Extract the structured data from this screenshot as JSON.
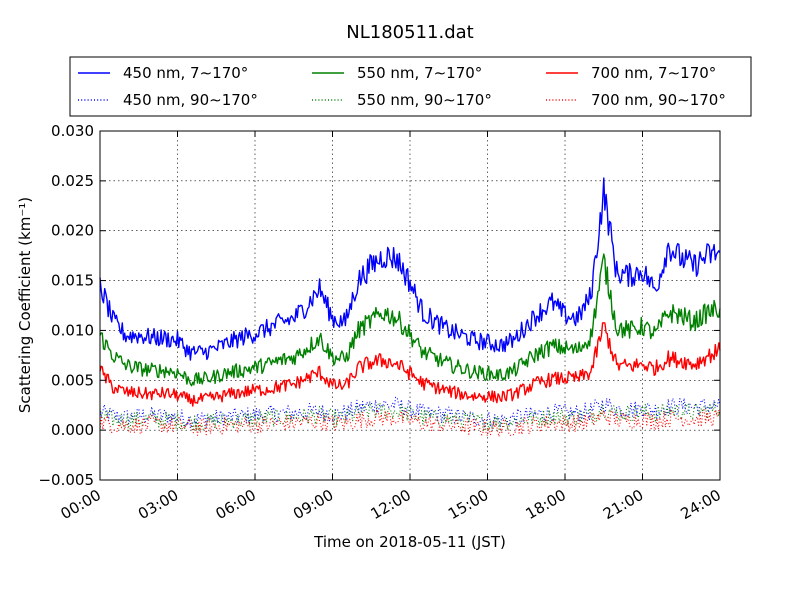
{
  "chart_data": {
    "type": "line",
    "title": "NL180511.dat",
    "xlabel": "Time on 2018-05-11 (JST)",
    "ylabel": "Scattering Coefficient (km⁻¹)",
    "xlim": [
      "00:00",
      "24:00"
    ],
    "ylim": [
      -0.005,
      0.03
    ],
    "x_ticks": [
      "00:00",
      "03:00",
      "06:00",
      "09:00",
      "12:00",
      "15:00",
      "18:00",
      "21:00",
      "24:00"
    ],
    "y_ticks": [
      "−0.005",
      "0.000",
      "0.005",
      "0.010",
      "0.015",
      "0.020",
      "0.025",
      "0.030"
    ],
    "grid": true,
    "legend_position": "top",
    "x": [
      "00:00",
      "00:30",
      "01:00",
      "01:30",
      "02:00",
      "02:30",
      "03:00",
      "03:30",
      "04:00",
      "04:30",
      "05:00",
      "05:30",
      "06:00",
      "06:30",
      "07:00",
      "07:30",
      "08:00",
      "08:30",
      "09:00",
      "09:30",
      "10:00",
      "10:30",
      "11:00",
      "11:30",
      "12:00",
      "12:30",
      "13:00",
      "13:30",
      "14:00",
      "14:30",
      "15:00",
      "15:30",
      "16:00",
      "16:30",
      "17:00",
      "17:30",
      "18:00",
      "18:30",
      "19:00",
      "19:30",
      "20:00",
      "20:30",
      "21:00",
      "21:30",
      "22:00",
      "22:30",
      "23:00",
      "23:30",
      "24:00"
    ],
    "series": [
      {
        "name": "450 nm, 7∼170°",
        "color": "#0000ff",
        "style": "solid",
        "values": [
          0.0145,
          0.011,
          0.0095,
          0.0095,
          0.0093,
          0.0092,
          0.009,
          0.0078,
          0.0078,
          0.0082,
          0.0088,
          0.0093,
          0.0097,
          0.0102,
          0.0108,
          0.0112,
          0.0125,
          0.0142,
          0.0112,
          0.0108,
          0.015,
          0.0165,
          0.0175,
          0.0172,
          0.0148,
          0.0118,
          0.0108,
          0.01,
          0.0095,
          0.009,
          0.0088,
          0.0085,
          0.009,
          0.0105,
          0.0118,
          0.0128,
          0.0115,
          0.0112,
          0.0135,
          0.024,
          0.0158,
          0.0155,
          0.016,
          0.014,
          0.0185,
          0.0172,
          0.0165,
          0.0175,
          0.0178
        ]
      },
      {
        "name": "550 nm, 7∼170°",
        "color": "#008000",
        "style": "solid",
        "values": [
          0.0095,
          0.0075,
          0.0065,
          0.0062,
          0.006,
          0.006,
          0.0058,
          0.005,
          0.0051,
          0.0054,
          0.0058,
          0.006,
          0.0063,
          0.0066,
          0.007,
          0.0073,
          0.0082,
          0.0093,
          0.0073,
          0.0071,
          0.01,
          0.011,
          0.0118,
          0.0112,
          0.0096,
          0.0078,
          0.0072,
          0.0066,
          0.0062,
          0.0058,
          0.0057,
          0.0055,
          0.0059,
          0.0069,
          0.0078,
          0.0084,
          0.0082,
          0.008,
          0.0094,
          0.017,
          0.0103,
          0.01,
          0.0104,
          0.0096,
          0.0118,
          0.0115,
          0.0108,
          0.0118,
          0.0122
        ]
      },
      {
        "name": "700 nm, 7∼170°",
        "color": "#ff0000",
        "style": "solid",
        "values": [
          0.006,
          0.0043,
          0.0038,
          0.0037,
          0.0036,
          0.0037,
          0.0035,
          0.003,
          0.0031,
          0.0033,
          0.0036,
          0.0038,
          0.004,
          0.0041,
          0.0044,
          0.0046,
          0.0052,
          0.0058,
          0.0045,
          0.0044,
          0.0062,
          0.0068,
          0.007,
          0.0066,
          0.0057,
          0.0047,
          0.0043,
          0.0039,
          0.0036,
          0.0034,
          0.0034,
          0.0033,
          0.0036,
          0.0042,
          0.0048,
          0.0051,
          0.0052,
          0.0052,
          0.0058,
          0.0105,
          0.0065,
          0.0064,
          0.0066,
          0.0062,
          0.0072,
          0.007,
          0.0066,
          0.0074,
          0.008
        ]
      },
      {
        "name": "450 nm, 90∼170°",
        "color": "#0000ff",
        "style": "dotted",
        "values": [
          0.0018,
          0.0014,
          0.0013,
          0.0014,
          0.0015,
          0.0014,
          0.0013,
          0.0011,
          0.0011,
          0.0012,
          0.0013,
          0.0014,
          0.0015,
          0.0016,
          0.0017,
          0.0017,
          0.0018,
          0.0019,
          0.0016,
          0.0017,
          0.0022,
          0.0025,
          0.0026,
          0.0025,
          0.0021,
          0.0017,
          0.0016,
          0.0015,
          0.0013,
          0.0012,
          0.0011,
          0.001,
          0.0012,
          0.0014,
          0.0016,
          0.0018,
          0.0017,
          0.0017,
          0.0019,
          0.0027,
          0.0021,
          0.0021,
          0.0022,
          0.002,
          0.0024,
          0.0024,
          0.0023,
          0.0024,
          0.0025
        ]
      },
      {
        "name": "550 nm, 90∼170°",
        "color": "#008000",
        "style": "dotted",
        "values": [
          0.0014,
          0.0011,
          0.001,
          0.001,
          0.0011,
          0.001,
          0.001,
          0.0008,
          0.0008,
          0.0009,
          0.001,
          0.001,
          0.0011,
          0.0012,
          0.0012,
          0.0013,
          0.0014,
          0.0015,
          0.0012,
          0.0012,
          0.0017,
          0.0019,
          0.002,
          0.0019,
          0.0016,
          0.0013,
          0.0012,
          0.0011,
          0.001,
          0.0009,
          0.0008,
          0.0008,
          0.0009,
          0.0011,
          0.0012,
          0.0014,
          0.0013,
          0.0013,
          0.0015,
          0.0022,
          0.0017,
          0.0017,
          0.0018,
          0.0016,
          0.002,
          0.0019,
          0.0018,
          0.002,
          0.0021
        ]
      },
      {
        "name": "700 nm, 90∼170°",
        "color": "#ff0000",
        "style": "dotted",
        "values": [
          0.0008,
          0.0006,
          0.0005,
          0.0005,
          0.0006,
          0.0005,
          0.0005,
          0.0003,
          0.0003,
          0.0004,
          0.0005,
          0.0005,
          0.0006,
          0.0006,
          0.0007,
          0.0007,
          0.0008,
          0.0009,
          0.0007,
          0.0007,
          0.001,
          0.0012,
          0.0013,
          0.0012,
          0.001,
          0.0007,
          0.0006,
          0.0005,
          0.0004,
          0.0003,
          0.0002,
          0.0002,
          0.0003,
          0.0005,
          0.0006,
          0.0008,
          0.0007,
          0.0007,
          0.0009,
          0.0015,
          0.001,
          0.001,
          0.0011,
          0.0009,
          0.0012,
          0.0012,
          0.0011,
          0.0012,
          0.0013
        ]
      }
    ]
  }
}
